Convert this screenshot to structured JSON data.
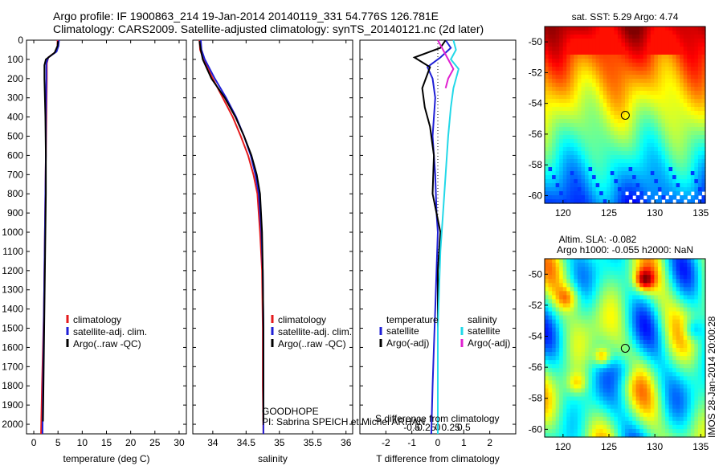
{
  "header": {
    "line1": "Argo profile: IF 1900863_214 19-Jan-2014 20140119_331 54.776S 126.781E",
    "line2": "Climatology: CARS2009. Satellite-adjusted climatology: synTS_20140121.nc (2d later)"
  },
  "credit": {
    "project": "GOODHOPE",
    "pi": "PI: Sabrina SPEICH et Michel ARHAN"
  },
  "timestamp": "IMOS 28-Jan-2014 20:00:28",
  "colors": {
    "climatology": "#e41a1c",
    "satellite": "#1f1fd6",
    "argo": "#000000",
    "sal_sat": "#22d8e8",
    "sal_argo": "#e020d0"
  },
  "chart_data": [
    {
      "name": "temperature",
      "type": "line",
      "xlabel": "temperature (deg C)",
      "ylabel": "",
      "xlim": [
        -1.5,
        31.5
      ],
      "ylim": [
        2050,
        0
      ],
      "xticks": [
        0,
        5,
        10,
        15,
        20,
        25,
        30
      ],
      "xtick_labels": [
        "0",
        "5",
        "10",
        "15",
        "20",
        "25",
        "30"
      ],
      "yticks": [
        0,
        100,
        200,
        300,
        400,
        500,
        600,
        700,
        800,
        900,
        1000,
        1100,
        1200,
        1300,
        1400,
        1500,
        1600,
        1700,
        1800,
        1900,
        2000
      ],
      "ytick_labels": [
        "0",
        "100",
        "200",
        "300",
        "400",
        "500",
        "600",
        "700",
        "800",
        "900",
        "1000",
        "1100",
        "1200",
        "1300",
        "1400",
        "1500",
        "1600",
        "1700",
        "1800",
        "1900",
        "2000"
      ],
      "legend": [
        "climatology",
        "satellite-adj. clim.",
        "Argo(..raw -QC)"
      ],
      "series": [
        {
          "name": "climatology",
          "color": "#e41a1c",
          "x": [
            4.9,
            4.9,
            4.6,
            3.0,
            2.7,
            2.7,
            2.6,
            2.5,
            2.4,
            2.3,
            2.2,
            2.1,
            1.9,
            1.7,
            1.5
          ],
          "y": [
            0,
            30,
            60,
            90,
            120,
            200,
            400,
            600,
            800,
            1000,
            1200,
            1400,
            1600,
            1800,
            2050
          ]
        },
        {
          "name": "satellite-adj. clim.",
          "color": "#1f1fd6",
          "x": [
            5.2,
            5.1,
            4.7,
            3.0,
            2.6,
            2.6,
            2.5,
            2.5,
            2.4,
            2.3,
            2.2,
            2.1,
            2.0,
            1.9,
            1.8
          ],
          "y": [
            0,
            30,
            60,
            90,
            120,
            200,
            400,
            600,
            800,
            1000,
            1200,
            1400,
            1600,
            1800,
            2050
          ]
        },
        {
          "name": "Argo(..raw -QC)",
          "color": "#000000",
          "x": [
            5.0,
            4.9,
            4.3,
            2.5,
            2.2,
            2.2,
            2.4,
            2.5,
            2.5,
            2.4,
            2.3,
            2.2,
            2.1,
            2.0,
            1.9
          ],
          "y": [
            5,
            30,
            65,
            100,
            130,
            200,
            400,
            600,
            800,
            1000,
            1200,
            1400,
            1600,
            1800,
            1985
          ]
        }
      ]
    },
    {
      "name": "salinity",
      "type": "line",
      "xlabel": "salinity",
      "xlim": [
        33.7,
        36.1
      ],
      "ylim": [
        2050,
        0
      ],
      "xticks": [
        34,
        34.5,
        35,
        35.5,
        36
      ],
      "xtick_labels": [
        "34",
        "34.5",
        "35",
        "35.5",
        "36"
      ],
      "legend": [
        "climatology",
        "satellite-adj. clim.",
        "Argo(..raw -QC)"
      ],
      "series": [
        {
          "name": "climatology",
          "color": "#e41a1c",
          "x": [
            33.8,
            33.81,
            33.86,
            34.0,
            34.15,
            34.3,
            34.42,
            34.53,
            34.61,
            34.67,
            34.71,
            34.74,
            34.75,
            34.75,
            34.76
          ],
          "y": [
            0,
            50,
            100,
            200,
            300,
            400,
            500,
            600,
            700,
            800,
            1000,
            1200,
            1500,
            1800,
            2050
          ]
        },
        {
          "name": "satellite-adj. clim.",
          "color": "#1f1fd6",
          "x": [
            33.82,
            33.83,
            33.88,
            34.03,
            34.2,
            34.35,
            34.47,
            34.57,
            34.64,
            34.69,
            34.73,
            34.75,
            34.76,
            34.76,
            34.76
          ],
          "y": [
            0,
            50,
            100,
            200,
            300,
            400,
            500,
            600,
            700,
            800,
            1000,
            1200,
            1500,
            1800,
            2050
          ]
        },
        {
          "name": "Argo(..raw -QC)",
          "color": "#000000",
          "x": [
            33.8,
            33.82,
            33.85,
            33.98,
            34.18,
            34.34,
            34.47,
            34.58,
            34.66,
            34.71,
            34.74,
            34.75,
            34.76,
            34.76
          ],
          "y": [
            5,
            50,
            100,
            200,
            300,
            400,
            500,
            600,
            700,
            800,
            1000,
            1200,
            1500,
            1985
          ]
        }
      ]
    },
    {
      "name": "difference",
      "type": "line",
      "xlabel": "T difference from climatology",
      "xlabel_top": "S difference from climatology",
      "xlim": [
        -3,
        3
      ],
      "ylim": [
        2050,
        0
      ],
      "xticks": [
        -2,
        -1,
        0,
        1,
        2
      ],
      "xtick_labels": [
        "-2",
        "-1",
        "0",
        "1",
        "2"
      ],
      "sticks": [
        -0.5,
        -0.25,
        0,
        0.25,
        0.5
      ],
      "stick_labels": [
        "-0.5",
        "-0.25",
        "0",
        "0.25",
        "0.5"
      ],
      "legend_temperature": [
        "temperature",
        "satellite",
        "Argo(-adj)"
      ],
      "legend_salinity": [
        "salinity",
        "satellite",
        "Argo(-adj)"
      ],
      "series": [
        {
          "name": "T satellite",
          "color": "#1f1fd6",
          "x": [
            0.3,
            0.5,
            0.1,
            -0.4,
            -0.2,
            -0.1,
            -0.2,
            -0.1,
            -0.05,
            0.0,
            -0.05,
            -0.1,
            -0.15,
            -0.2,
            -0.25
          ],
          "y": [
            0,
            40,
            90,
            140,
            200,
            300,
            500,
            700,
            900,
            1000,
            1200,
            1400,
            1600,
            1800,
            2050
          ]
        },
        {
          "name": "T Argo(-adj)",
          "color": "#000000",
          "x": [
            0.3,
            0.1,
            -0.9,
            -0.3,
            -0.6,
            -0.5,
            -0.3,
            -0.15,
            -0.2,
            0.1,
            0.0,
            0.0,
            0.0,
            0.0,
            0.0
          ],
          "y": [
            0,
            40,
            90,
            140,
            250,
            350,
            450,
            600,
            800,
            1000,
            1200,
            1400,
            1600,
            1800,
            1985
          ]
        },
        {
          "name": "S satellite",
          "color": "#22d8e8",
          "x": [
            0.6,
            0.7,
            0.5,
            0.8,
            0.6,
            0.5,
            0.4,
            0.3,
            0.2,
            0.1,
            0.05,
            0.0,
            0.0,
            0.0,
            0.0
          ],
          "y": [
            0,
            50,
            100,
            150,
            250,
            350,
            500,
            700,
            900,
            1100,
            1300,
            1500,
            1700,
            1900,
            2050
          ]
        },
        {
          "name": "S Argo(-adj)",
          "color": "#e020d0",
          "x": [
            0.0,
            0.2,
            0.4,
            0.6,
            0.4,
            0.3
          ],
          "y": [
            0,
            50,
            100,
            150,
            200,
            250
          ]
        }
      ]
    },
    {
      "name": "sst-map",
      "type": "heatmap",
      "title": "sat. SST: 5.29 Argo: 4.74",
      "xlim": [
        118,
        135.5
      ],
      "ylim": [
        -60.5,
        -49
      ],
      "xticks": [
        120,
        125,
        130,
        135
      ],
      "xtick_labels": [
        "120",
        "125",
        "130",
        "135"
      ],
      "yticks": [
        -50,
        -52,
        -54,
        -56,
        -58,
        -60
      ],
      "ytick_labels": [
        "-50",
        "-52",
        "-54",
        "-56",
        "-58",
        "-60"
      ],
      "marker": {
        "lon": 126.781,
        "lat": -54.776
      }
    },
    {
      "name": "sla-map",
      "type": "heatmap",
      "title": "Altim. SLA: -0.082",
      "subtitle": "Argo h1000: -0.055 h2000: NaN",
      "xlim": [
        118,
        135.5
      ],
      "ylim": [
        -60.5,
        -49
      ],
      "xticks": [
        120,
        125,
        130,
        135
      ],
      "xtick_labels": [
        "120",
        "125",
        "130",
        "135"
      ],
      "yticks": [
        -50,
        -52,
        -54,
        -56,
        -58,
        -60
      ],
      "ytick_labels": [
        "-50",
        "-52",
        "-54",
        "-56",
        "-58",
        "-60"
      ],
      "marker": {
        "lon": 126.781,
        "lat": -54.776
      }
    }
  ]
}
